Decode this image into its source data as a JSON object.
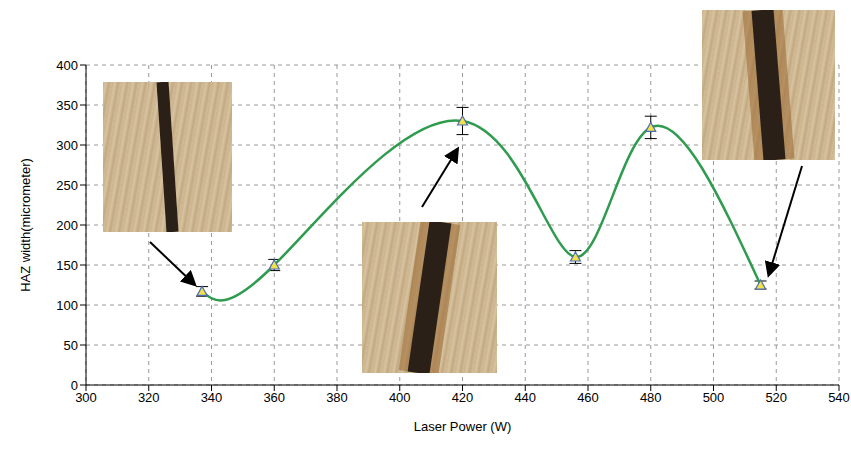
{
  "chart_data": {
    "type": "line",
    "x": [
      337,
      360,
      420,
      456,
      480,
      515
    ],
    "values": [
      117,
      150,
      330,
      160,
      322,
      125
    ],
    "errors": [
      6,
      7,
      17,
      8,
      14,
      5
    ],
    "color": "#2e9b4e",
    "marker": "triangle",
    "line_style": "solid",
    "x_label": "Laser Power (W)",
    "y_label": "HAZ width(micrometer)",
    "xlim": [
      300,
      540
    ],
    "xticks": [
      300,
      320,
      340,
      360,
      380,
      400,
      420,
      440,
      460,
      480,
      500,
      520,
      540
    ],
    "ylim": [
      0,
      400
    ],
    "yticks": [
      0,
      50,
      100,
      150,
      200,
      250,
      300,
      350,
      400
    ],
    "grid": true
  }
}
